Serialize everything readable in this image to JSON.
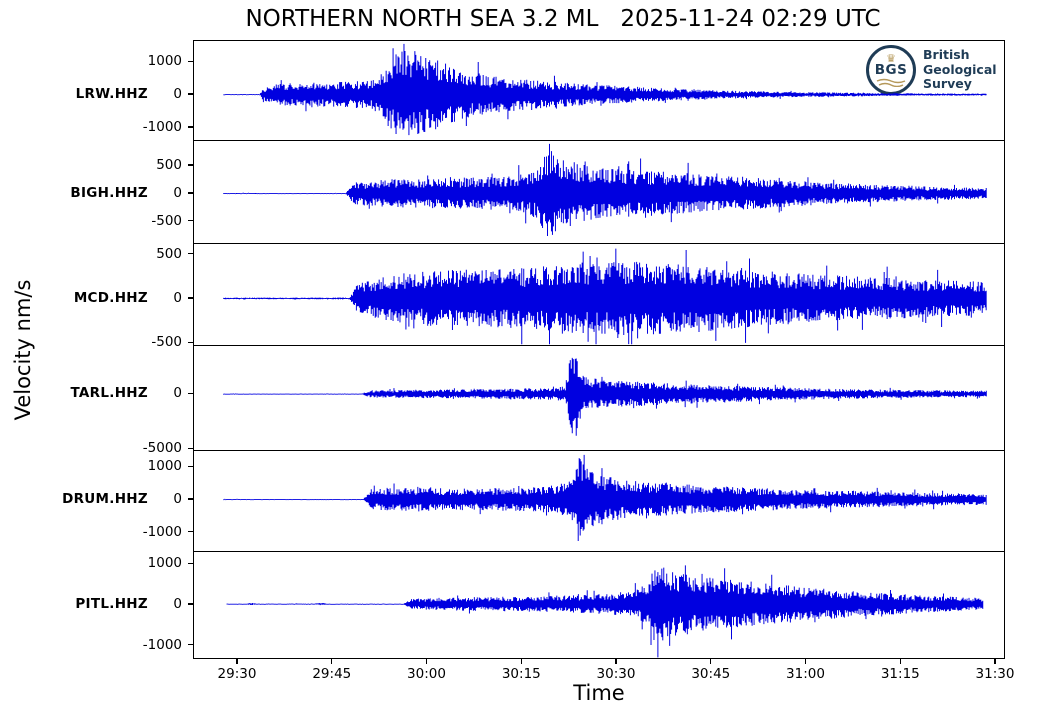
{
  "logo": {
    "abbr": "BGS",
    "line1": "British",
    "line2": "Geological",
    "line3": "Survey"
  },
  "chart_data": {
    "type": "line",
    "subtype": "seismogram-multitrace",
    "title": "NORTHERN NORTH SEA 3.2 ML   2025-11-24 02:29 UTC",
    "xlabel": "Time",
    "ylabel": "Velocity nm/s",
    "grid": false,
    "trace_color": "#0000e0",
    "x_ticks": [
      "29:30",
      "29:45",
      "30:00",
      "30:15",
      "30:30",
      "30:45",
      "31:00",
      "31:15",
      "31:30"
    ],
    "x_tick_start_frac": 0.0542,
    "x_tick_step_frac": 0.11669,
    "trace_start_frac": 0.033,
    "trace_end_frac": 0.982,
    "stations": [
      {
        "id": "LRW.HHZ",
        "y_ticks": [
          "1000",
          "0",
          "-1000"
        ],
        "y_tick_values": [
          1000,
          0,
          -1000
        ],
        "ylim": [
          1650,
          -1400
        ],
        "envelope": [
          [
            0.033,
            16
          ],
          [
            0.078,
            16
          ],
          [
            0.082,
            170
          ],
          [
            0.095,
            330
          ],
          [
            0.14,
            360
          ],
          [
            0.19,
            400
          ],
          [
            0.22,
            480
          ],
          [
            0.235,
            800
          ],
          [
            0.25,
            1380
          ],
          [
            0.27,
            1250
          ],
          [
            0.3,
            1050
          ],
          [
            0.33,
            750
          ],
          [
            0.37,
            560
          ],
          [
            0.43,
            420
          ],
          [
            0.5,
            300
          ],
          [
            0.57,
            210
          ],
          [
            0.64,
            140
          ],
          [
            0.72,
            90
          ],
          [
            0.8,
            60
          ],
          [
            0.9,
            38
          ],
          [
            0.982,
            30
          ]
        ]
      },
      {
        "id": "BIGH.HHZ",
        "y_ticks": [
          "500",
          "0",
          "-500"
        ],
        "y_tick_values": [
          500,
          0,
          -500
        ],
        "ylim": [
          950,
          -900
        ],
        "envelope": [
          [
            0.033,
            8
          ],
          [
            0.185,
            8
          ],
          [
            0.195,
            200
          ],
          [
            0.24,
            260
          ],
          [
            0.3,
            270
          ],
          [
            0.36,
            300
          ],
          [
            0.4,
            330
          ],
          [
            0.425,
            480
          ],
          [
            0.435,
            840
          ],
          [
            0.455,
            640
          ],
          [
            0.49,
            480
          ],
          [
            0.53,
            430
          ],
          [
            0.58,
            400
          ],
          [
            0.64,
            330
          ],
          [
            0.7,
            280
          ],
          [
            0.76,
            220
          ],
          [
            0.83,
            170
          ],
          [
            0.9,
            130
          ],
          [
            0.982,
            100
          ]
        ]
      },
      {
        "id": "MCD.HHZ",
        "y_ticks": [
          "500",
          "0",
          "-500"
        ],
        "y_tick_values": [
          500,
          0,
          -500
        ],
        "ylim": [
          620,
          -530
        ],
        "envelope": [
          [
            0.033,
            10
          ],
          [
            0.19,
            10
          ],
          [
            0.2,
            180
          ],
          [
            0.25,
            280
          ],
          [
            0.31,
            330
          ],
          [
            0.37,
            330
          ],
          [
            0.42,
            350
          ],
          [
            0.46,
            420
          ],
          [
            0.5,
            400
          ],
          [
            0.54,
            430
          ],
          [
            0.58,
            400
          ],
          [
            0.63,
            380
          ],
          [
            0.68,
            330
          ],
          [
            0.74,
            290
          ],
          [
            0.8,
            260
          ],
          [
            0.87,
            230
          ],
          [
            0.93,
            210
          ],
          [
            0.982,
            190
          ]
        ]
      },
      {
        "id": "TARL.HHZ",
        "y_ticks": [
          "0",
          "-5000"
        ],
        "y_tick_values": [
          0,
          -5000
        ],
        "ylim": [
          4400,
          -5150
        ],
        "envelope": [
          [
            0.033,
            30
          ],
          [
            0.205,
            30
          ],
          [
            0.215,
            330
          ],
          [
            0.27,
            380
          ],
          [
            0.33,
            420
          ],
          [
            0.39,
            480
          ],
          [
            0.44,
            520
          ],
          [
            0.458,
            700
          ],
          [
            0.467,
            4600
          ],
          [
            0.478,
            2000
          ],
          [
            0.5,
            1300
          ],
          [
            0.55,
            1100
          ],
          [
            0.61,
            900
          ],
          [
            0.67,
            750
          ],
          [
            0.74,
            560
          ],
          [
            0.81,
            440
          ],
          [
            0.88,
            360
          ],
          [
            0.982,
            300
          ]
        ]
      },
      {
        "id": "DRUM.HHZ",
        "y_ticks": [
          "1000",
          "0",
          "-1000"
        ],
        "y_tick_values": [
          1000,
          0,
          -1000
        ],
        "ylim": [
          1500,
          -1600
        ],
        "envelope": [
          [
            0.033,
            12
          ],
          [
            0.207,
            12
          ],
          [
            0.215,
            330
          ],
          [
            0.27,
            360
          ],
          [
            0.33,
            340
          ],
          [
            0.39,
            360
          ],
          [
            0.43,
            400
          ],
          [
            0.462,
            520
          ],
          [
            0.474,
            1320
          ],
          [
            0.49,
            900
          ],
          [
            0.52,
            640
          ],
          [
            0.57,
            520
          ],
          [
            0.63,
            430
          ],
          [
            0.7,
            350
          ],
          [
            0.77,
            290
          ],
          [
            0.85,
            240
          ],
          [
            0.92,
            200
          ],
          [
            0.982,
            170
          ]
        ]
      },
      {
        "id": "PITL.HHZ",
        "y_ticks": [
          "1000",
          "0",
          "-1000"
        ],
        "y_tick_values": [
          1000,
          0,
          -1000
        ],
        "ylim": [
          1300,
          -1350
        ],
        "envelope": [
          [
            0.033,
            10
          ],
          [
            0.058,
            10
          ],
          [
            0.064,
            30
          ],
          [
            0.07,
            10
          ],
          [
            0.143,
            12
          ],
          [
            0.152,
            32
          ],
          [
            0.16,
            10
          ],
          [
            0.255,
            10
          ],
          [
            0.265,
            130
          ],
          [
            0.31,
            160
          ],
          [
            0.37,
            180
          ],
          [
            0.43,
            200
          ],
          [
            0.49,
            230
          ],
          [
            0.54,
            300
          ],
          [
            0.562,
            520
          ],
          [
            0.572,
            1080
          ],
          [
            0.59,
            820
          ],
          [
            0.62,
            700
          ],
          [
            0.66,
            620
          ],
          [
            0.71,
            520
          ],
          [
            0.76,
            420
          ],
          [
            0.81,
            340
          ],
          [
            0.86,
            270
          ],
          [
            0.91,
            210
          ],
          [
            0.95,
            175
          ],
          [
            0.982,
            150
          ]
        ]
      }
    ]
  }
}
